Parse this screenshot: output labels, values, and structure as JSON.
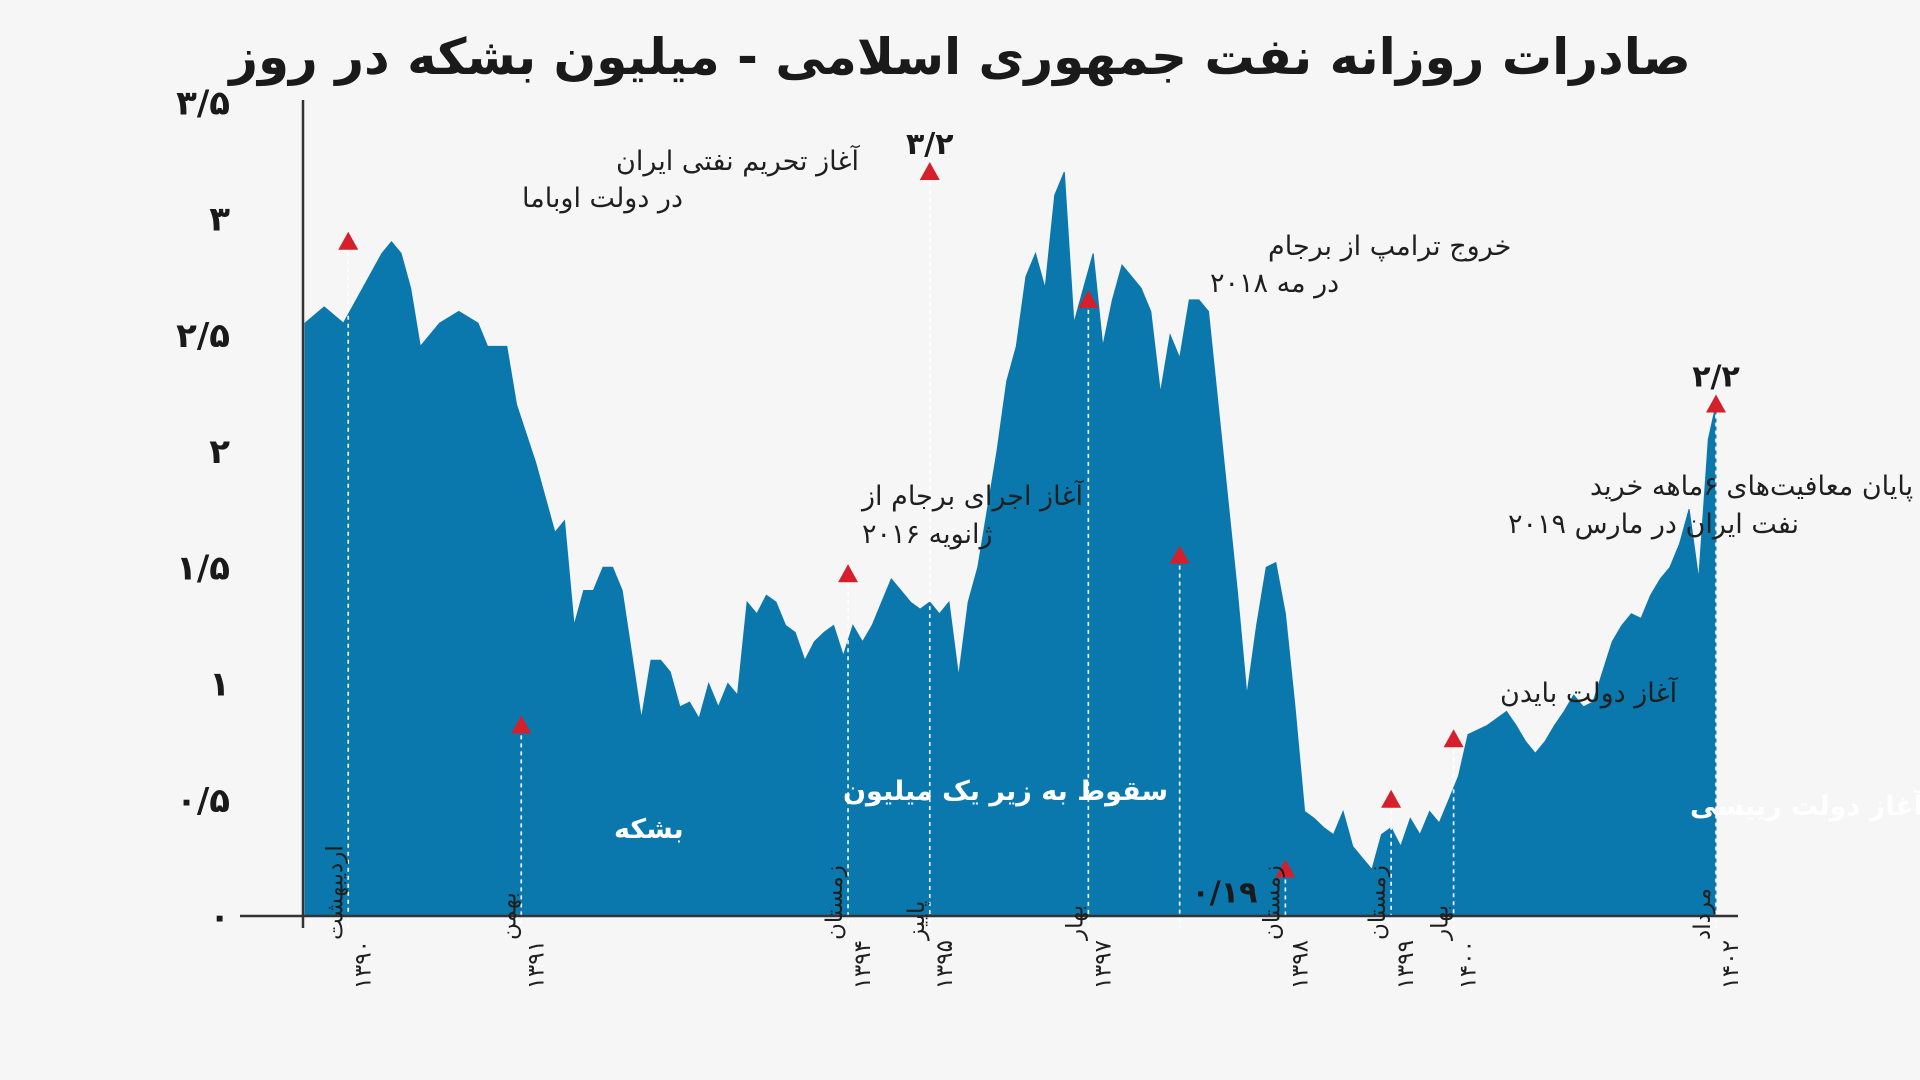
{
  "chart_data": {
    "type": "area",
    "title": "صادرات روزانه نفت جمهوری اسلامی - میلیون بشکه در روز",
    "ylim": [
      0,
      3.5
    ],
    "y_ticks": [
      {
        "v": 0,
        "label": "۰"
      },
      {
        "v": 0.5,
        "label": "۰/۵"
      },
      {
        "v": 1,
        "label": "۱"
      },
      {
        "v": 1.5,
        "label": "۱/۵"
      },
      {
        "v": 2,
        "label": "۲"
      },
      {
        "v": 2.5,
        "label": "۲/۵"
      },
      {
        "v": 3,
        "label": "۳"
      },
      {
        "v": 3.5,
        "label": "۳/۵"
      }
    ],
    "area_color": "#0a78ad",
    "marker_color": "#d51f2b",
    "series": [
      {
        "values": [
          [
            0,
            2.55
          ],
          [
            2,
            2.62
          ],
          [
            4,
            2.55
          ],
          [
            6,
            2.7
          ],
          [
            8,
            2.85
          ],
          [
            9,
            2.9
          ],
          [
            10,
            2.85
          ],
          [
            11,
            2.7
          ],
          [
            12,
            2.45
          ],
          [
            14,
            2.55
          ],
          [
            16,
            2.6
          ],
          [
            18,
            2.55
          ],
          [
            19,
            2.45
          ],
          [
            21,
            2.45
          ],
          [
            22,
            2.2
          ],
          [
            24,
            1.95
          ],
          [
            25,
            1.8
          ],
          [
            26,
            1.65
          ],
          [
            27,
            1.7
          ],
          [
            28,
            1.25
          ],
          [
            29,
            1.4
          ],
          [
            30,
            1.4
          ],
          [
            31,
            1.5
          ],
          [
            32,
            1.5
          ],
          [
            33,
            1.4
          ],
          [
            35,
            0.85
          ],
          [
            36,
            1.1
          ],
          [
            37,
            1.1
          ],
          [
            38,
            1.05
          ],
          [
            39,
            0.9
          ],
          [
            40,
            0.92
          ],
          [
            41,
            0.85
          ],
          [
            42,
            1.0
          ],
          [
            43,
            0.9
          ],
          [
            44,
            1.0
          ],
          [
            45,
            0.95
          ],
          [
            46,
            1.35
          ],
          [
            47,
            1.3
          ],
          [
            48,
            1.38
          ],
          [
            49,
            1.35
          ],
          [
            50,
            1.25
          ],
          [
            51,
            1.22
          ],
          [
            52,
            1.1
          ],
          [
            53,
            1.18
          ],
          [
            54,
            1.22
          ],
          [
            55,
            1.25
          ],
          [
            56,
            1.12
          ],
          [
            57,
            1.25
          ],
          [
            58,
            1.18
          ],
          [
            59,
            1.25
          ],
          [
            60,
            1.35
          ],
          [
            61,
            1.45
          ],
          [
            62,
            1.4
          ],
          [
            63,
            1.35
          ],
          [
            64,
            1.32
          ],
          [
            65,
            1.35
          ],
          [
            66,
            1.3
          ],
          [
            67,
            1.35
          ],
          [
            68,
            1.03
          ],
          [
            69,
            1.35
          ],
          [
            70,
            1.5
          ],
          [
            71,
            1.75
          ],
          [
            72,
            2.0
          ],
          [
            73,
            2.3
          ],
          [
            74,
            2.45
          ],
          [
            75,
            2.75
          ],
          [
            76,
            2.85
          ],
          [
            77,
            2.7
          ],
          [
            78,
            3.1
          ],
          [
            79,
            3.2
          ],
          [
            80,
            2.55
          ],
          [
            81,
            2.7
          ],
          [
            82,
            2.85
          ],
          [
            83,
            2.45
          ],
          [
            84,
            2.65
          ],
          [
            85,
            2.8
          ],
          [
            86,
            2.75
          ],
          [
            87,
            2.7
          ],
          [
            88,
            2.6
          ],
          [
            89,
            2.25
          ],
          [
            90,
            2.5
          ],
          [
            91,
            2.4
          ],
          [
            92,
            2.65
          ],
          [
            93,
            2.65
          ],
          [
            94,
            2.6
          ],
          [
            95,
            2.2
          ],
          [
            96,
            1.8
          ],
          [
            97,
            1.4
          ],
          [
            98,
            0.95
          ],
          [
            99,
            1.25
          ],
          [
            100,
            1.5
          ],
          [
            101,
            1.52
          ],
          [
            102,
            1.3
          ],
          [
            103,
            0.9
          ],
          [
            104,
            0.45
          ],
          [
            105,
            0.42
          ],
          [
            106,
            0.38
          ],
          [
            107,
            0.35
          ],
          [
            108,
            0.45
          ],
          [
            109,
            0.3
          ],
          [
            110,
            0.25
          ],
          [
            111,
            0.2
          ],
          [
            112,
            0.35
          ],
          [
            113,
            0.38
          ],
          [
            114,
            0.3
          ],
          [
            115,
            0.42
          ],
          [
            116,
            0.35
          ],
          [
            117,
            0.45
          ],
          [
            118,
            0.4
          ],
          [
            119,
            0.5
          ],
          [
            120,
            0.6
          ],
          [
            121,
            0.78
          ],
          [
            122,
            0.8
          ],
          [
            123,
            0.82
          ],
          [
            124,
            0.85
          ],
          [
            125,
            0.88
          ],
          [
            126,
            0.82
          ],
          [
            127,
            0.75
          ],
          [
            128,
            0.7
          ],
          [
            129,
            0.75
          ],
          [
            130,
            0.82
          ],
          [
            131,
            0.88
          ],
          [
            132,
            0.95
          ],
          [
            133,
            0.9
          ],
          [
            134,
            0.92
          ],
          [
            135,
            1.05
          ],
          [
            136,
            1.18
          ],
          [
            137,
            1.25
          ],
          [
            138,
            1.3
          ],
          [
            139,
            1.28
          ],
          [
            140,
            1.38
          ],
          [
            141,
            1.45
          ],
          [
            142,
            1.5
          ],
          [
            143,
            1.6
          ],
          [
            144,
            1.75
          ],
          [
            145,
            1.45
          ],
          [
            146,
            2.05
          ],
          [
            146.8,
            2.2
          ]
        ]
      }
    ],
    "markers": [
      {
        "x": 4.5,
        "v": 2.9
      },
      {
        "x": 22.5,
        "v": 0.82
      },
      {
        "x": 56.5,
        "v": 1.47
      },
      {
        "x": 65,
        "v": 3.2
      },
      {
        "x": 81.5,
        "v": 2.65
      },
      {
        "x": 91,
        "v": 1.55
      },
      {
        "x": 102,
        "v": 0.2
      },
      {
        "x": 113,
        "v": 0.5
      },
      {
        "x": 119.5,
        "v": 0.76
      },
      {
        "x": 146.8,
        "v": 2.2
      }
    ],
    "x_labels": [
      {
        "x": 4.5,
        "l1": "اردیبهشت",
        "l2": "۱۳۹۰"
      },
      {
        "x": 22.5,
        "l1": "بهمن",
        "l2": "۱۳۹۱"
      },
      {
        "x": 56.5,
        "l1": "زمستان",
        "l2": "۱۳۹۴"
      },
      {
        "x": 65,
        "l1": "پاییز",
        "l2": "۱۳۹۵"
      },
      {
        "x": 81.5,
        "l1": "بهار",
        "l2": "۱۳۹۷"
      },
      {
        "x": 102,
        "l1": "زمستان",
        "l2": "۱۳۹۸"
      },
      {
        "x": 113,
        "l1": "زمستان",
        "l2": "۱۳۹۹"
      },
      {
        "x": 119.5,
        "l1": "بهار",
        "l2": "۱۴۰۰"
      },
      {
        "x": 146.8,
        "l1": "مرداد",
        "l2": "۱۴۰۲"
      }
    ],
    "value_labels": [
      {
        "text": "۳/۲",
        "x": 65,
        "v": 3.2
      },
      {
        "text": "۰/۱۹",
        "x": 102,
        "v": 0.2
      },
      {
        "text": "۲/۲",
        "x": 146.8,
        "v": 2.2
      }
    ],
    "annotations": [
      {
        "lines": [
          "آغاز تحریم نفتی ایران",
          "در دولت اوباما"
        ],
        "color": "dark",
        "at": "upper-left"
      },
      {
        "lines": [
          "سقوط به زیر یک میلیون",
          "بشکه"
        ],
        "color": "white",
        "at": "lower-left"
      },
      {
        "lines": [
          "آغاز اجرای برجام از",
          "ژانویه ۲۰۱۶"
        ],
        "color": "dark",
        "at": "center-left"
      },
      {
        "lines": [
          "خروج ترامپ از برجام",
          "در مه ۲۰۱۸"
        ],
        "color": "dark",
        "at": "top-center"
      },
      {
        "lines": [
          "پایان معافیت‌های ۶ماهه خرید",
          "نفت ایران در مارس ۲۰۱۹"
        ],
        "color": "dark",
        "at": "center-right"
      },
      {
        "lines": [
          "آغاز دولت بایدن"
        ],
        "color": "dark",
        "at": "lower-right"
      },
      {
        "lines": [
          "آغاز دولت رییسی"
        ],
        "color": "white",
        "at": "lower-right"
      }
    ]
  }
}
